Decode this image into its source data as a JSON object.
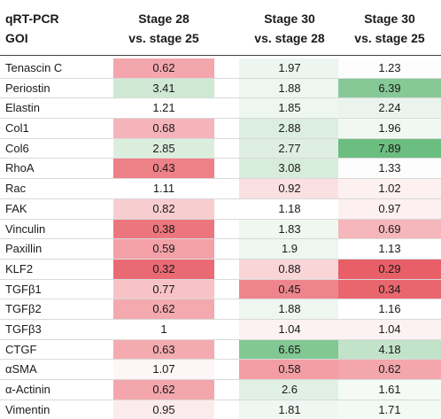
{
  "table": {
    "header": {
      "col0_line1": "qRT-PCR",
      "col0_line2": "GOI",
      "col1_line1": "Stage 28",
      "col1_line2": "vs. stage 25",
      "col2_line1": "Stage 30",
      "col2_line2": "vs. stage 28",
      "col3_line1": "Stage 30",
      "col3_line2": "vs. stage 25"
    },
    "rows": [
      {
        "gene": "Tenascin C",
        "v1": "0.62",
        "v2": "1.97",
        "v3": "1.23",
        "c1": "#f3a6ac",
        "c2": "#ecf5ef",
        "c3": "#fdfdfd"
      },
      {
        "gene": "Periostin",
        "v1": "3.41",
        "v2": "1.88",
        "v3": "6.39",
        "c1": "#cfe8d4",
        "c2": "#eef6f0",
        "c3": "#86c996"
      },
      {
        "gene": "Elastin",
        "v1": "1.21",
        "v2": "1.85",
        "v3": "2.24",
        "c1": "#ffffff",
        "c2": "#eef6f0",
        "c3": "#eaf4ec"
      },
      {
        "gene": "Col1",
        "v1": "0.68",
        "v2": "2.88",
        "v3": "1.96",
        "c1": "#f5b4b9",
        "c2": "#dceedf",
        "c3": "#f1f8f2"
      },
      {
        "gene": "Col6",
        "v1": "2.85",
        "v2": "2.77",
        "v3": "7.89",
        "c1": "#dbeede",
        "c2": "#ddefe1",
        "c3": "#6cbd80"
      },
      {
        "gene": "RhoA",
        "v1": "0.43",
        "v2": "3.08",
        "v3": "1.33",
        "c1": "#ee8087",
        "c2": "#d8ecdc",
        "c3": "#fdfdfd"
      },
      {
        "gene": "Rac",
        "v1": "1.11",
        "v2": "0.92",
        "v3": "1.02",
        "c1": "#ffffff",
        "c2": "#fbe0e2",
        "c3": "#fdf0f1"
      },
      {
        "gene": "FAK",
        "v1": "0.82",
        "v2": "1.18",
        "v3": "0.97",
        "c1": "#f8cdd0",
        "c2": "#ffffff",
        "c3": "#fdf0f1"
      },
      {
        "gene": "Vinculin",
        "v1": "0.38",
        "v2": "1.83",
        "v3": "0.69",
        "c1": "#ec767e",
        "c2": "#eff7f1",
        "c3": "#f5b7bc"
      },
      {
        "gene": "Paxillin",
        "v1": "0.59",
        "v2": "1.9",
        "v3": "1.13",
        "c1": "#f3a1a7",
        "c2": "#eef6f0",
        "c3": "#ffffff"
      },
      {
        "gene": "KLF2",
        "v1": "0.32",
        "v2": "0.88",
        "v3": "0.29",
        "c1": "#ea6a73",
        "c2": "#f9d5d8",
        "c3": "#e85f68"
      },
      {
        "gene": "TGFβ1",
        "v1": "0.77",
        "v2": "0.45",
        "v3": "0.34",
        "c1": "#f7c3c7",
        "c2": "#ef858c",
        "c3": "#e9666f"
      },
      {
        "gene": "TGFβ2",
        "v1": "0.62",
        "v2": "1.88",
        "v3": "1.16",
        "c1": "#f4a9ae",
        "c2": "#eef6f0",
        "c3": "#ffffff"
      },
      {
        "gene": "TGFβ3",
        "v1": "1",
        "v2": "1.04",
        "v3": "1.04",
        "c1": "#ffffff",
        "c2": "#fdf2f3",
        "c3": "#fdf2f3"
      },
      {
        "gene": "CTGF",
        "v1": "0.63",
        "v2": "6.65",
        "v3": "4.18",
        "c1": "#f4abb0",
        "c2": "#82c893",
        "c3": "#c2e3c9"
      },
      {
        "gene": "αSMA",
        "v1": "1.07",
        "v2": "0.58",
        "v3": "0.62",
        "c1": "#fdf5f6",
        "c2": "#f29ea4",
        "c3": "#f3a6ac"
      },
      {
        "gene": "α-Actinin",
        "v1": "0.62",
        "v2": "2.6",
        "v3": "1.61",
        "c1": "#f3a6ac",
        "c2": "#e1f0e4",
        "c3": "#f5faf6"
      },
      {
        "gene": "Vimentin",
        "v1": "0.95",
        "v2": "1.81",
        "v3": "1.71",
        "c1": "#fcebed",
        "c2": "#f0f7f2",
        "c3": "#f3f9f4"
      }
    ]
  }
}
